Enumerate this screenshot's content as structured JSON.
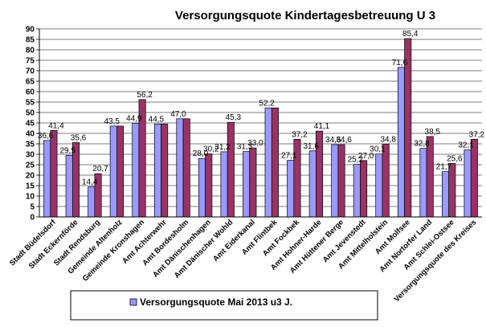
{
  "chart_data": {
    "type": "bar",
    "title": "Versorgungsquote Kindertagesbetreuung U 3",
    "ylim": [
      0,
      90
    ],
    "yticks": [
      0,
      5,
      10,
      15,
      20,
      25,
      30,
      35,
      40,
      45,
      50,
      55,
      60,
      65,
      70,
      75,
      80,
      85,
      90
    ],
    "grid": true,
    "legend_position": "bottom",
    "categories": [
      "Stadt Büdelsdorf",
      "Stadt Eckernförde",
      "Stadt Rendsburg",
      "Gemeinde Altenholz",
      "Gemeinde Kronshagen",
      "Amt Achterwehr",
      "Amt Bordesholm",
      "Amt Dänischenhagen",
      "Amt Dänischer Wohld",
      "Amt Eiderkanal",
      "Amt Flintbek",
      "Amt Fockbek",
      "Amt Hohner-Harde",
      "Amt Hüttener Berge",
      "Amt Jevenstedt",
      "Amt Mittelholstein",
      "Amt Molfsee",
      "Amt Nortorfer Land",
      "Amt Schlei-Ostsee",
      "Versorgungsquote des Kreises"
    ],
    "series": [
      {
        "name": "Versorgungsquote Mai 2013 u3 J.",
        "color": "#9999ff",
        "values": [
          36.6,
          29.5,
          14.4,
          43.5,
          44.9,
          44.5,
          47.0,
          28.0,
          31.2,
          31.3,
          52.2,
          27.1,
          31.6,
          34.6,
          25.2,
          30.1,
          71.6,
          32.8,
          21.7,
          32.1
        ],
        "labels": [
          "36,6",
          "29,5",
          "14,4",
          "43,5",
          "44,9",
          "44,5",
          "47,0",
          "28,0",
          "31,2",
          "31,3",
          "52,2",
          "27,1",
          "31,6",
          "34,6",
          "25,2",
          "30,1",
          "71,6",
          "32,8",
          "21,7",
          "32,1"
        ]
      },
      {
        "name": "",
        "color": "#993366",
        "values": [
          41.4,
          35.6,
          20.7,
          43.5,
          56.2,
          44.5,
          47.0,
          30.2,
          45.3,
          33.0,
          52.2,
          37.2,
          41.1,
          34.6,
          27.0,
          34.8,
          85.4,
          38.5,
          25.6,
          37.2
        ],
        "labels": [
          "41,4",
          "35,6",
          "20,7",
          "",
          "56,2",
          "",
          "",
          "30,2",
          "45,3",
          "33,0",
          "",
          "37,2",
          "41,1",
          "34,6",
          "27,0",
          "34,8",
          "85,4",
          "38,5",
          "25,6",
          "37,2"
        ]
      }
    ]
  }
}
